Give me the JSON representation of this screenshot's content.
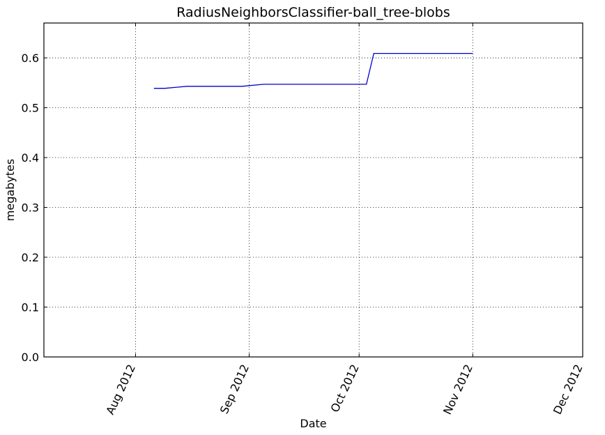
{
  "chart_data": {
    "type": "line",
    "title": "RadiusNeighborsClassifier-ball_tree-blobs",
    "xlabel": "Date",
    "ylabel": "megabytes",
    "grid": true,
    "legend": "none",
    "x_axis": {
      "type": "date",
      "range": [
        "2012-07-07",
        "2012-12-01"
      ],
      "ticks": [
        {
          "date": "2012-08-01",
          "label": "Aug 2012"
        },
        {
          "date": "2012-09-01",
          "label": "Sep 2012"
        },
        {
          "date": "2012-10-01",
          "label": "Oct 2012"
        },
        {
          "date": "2012-11-01",
          "label": "Nov 2012"
        },
        {
          "date": "2012-12-01",
          "label": "Dec 2012"
        }
      ]
    },
    "y_axis": {
      "range": [
        0,
        0.67
      ],
      "ticks": [
        {
          "value": 0.0,
          "label": "0.0"
        },
        {
          "value": 0.1,
          "label": "0.1"
        },
        {
          "value": 0.2,
          "label": "0.2"
        },
        {
          "value": 0.3,
          "label": "0.3"
        },
        {
          "value": 0.4,
          "label": "0.4"
        },
        {
          "value": 0.5,
          "label": "0.5"
        },
        {
          "value": 0.6,
          "label": "0.6"
        }
      ]
    },
    "series": [
      {
        "color": "#0000cc",
        "points": [
          {
            "x": "2012-08-06",
            "y": 0.539
          },
          {
            "x": "2012-08-09",
            "y": 0.539
          },
          {
            "x": "2012-08-15",
            "y": 0.543
          },
          {
            "x": "2012-08-30",
            "y": 0.543
          },
          {
            "x": "2012-09-05",
            "y": 0.547
          },
          {
            "x": "2012-10-03",
            "y": 0.547
          },
          {
            "x": "2012-10-05",
            "y": 0.609
          },
          {
            "x": "2012-11-01",
            "y": 0.609
          }
        ]
      }
    ]
  }
}
